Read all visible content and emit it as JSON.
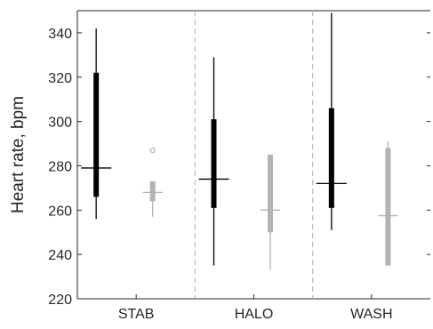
{
  "chart_data": {
    "type": "boxplot",
    "title": "",
    "xlabel": "",
    "ylabel": "Heart rate, bpm",
    "ylim": [
      220,
      350
    ],
    "yticks": [
      220,
      240,
      260,
      280,
      300,
      320,
      340
    ],
    "categories": [
      "STAB",
      "HALO",
      "WASH"
    ],
    "grid": false,
    "group_separators": "dashed",
    "series": [
      {
        "color": "#000000",
        "boxes": [
          {
            "category": "STAB",
            "whisker_low": 256,
            "q1": 266,
            "median": 279,
            "q3": 322,
            "whisker_high": 342,
            "outliers": []
          },
          {
            "category": "HALO",
            "whisker_low": 235,
            "q1": 261,
            "median": 274,
            "q3": 301,
            "whisker_high": 329,
            "outliers": []
          },
          {
            "category": "WASH",
            "whisker_low": 251,
            "q1": 261,
            "median": 272,
            "q3": 306,
            "whisker_high": 349,
            "outliers": []
          }
        ]
      },
      {
        "color": "#b3b3b3",
        "boxes": [
          {
            "category": "STAB",
            "whisker_low": 257,
            "q1": 264,
            "median": 268,
            "q3": 273,
            "whisker_high": 273,
            "outliers": [
              287
            ]
          },
          {
            "category": "HALO",
            "whisker_low": 233,
            "q1": 250,
            "median": 260,
            "q3": 285,
            "whisker_high": 285,
            "outliers": []
          },
          {
            "category": "WASH",
            "whisker_low": 235,
            "q1": 235,
            "median": 257.5,
            "q3": 288,
            "whisker_high": 291,
            "outliers": []
          }
        ]
      }
    ]
  }
}
